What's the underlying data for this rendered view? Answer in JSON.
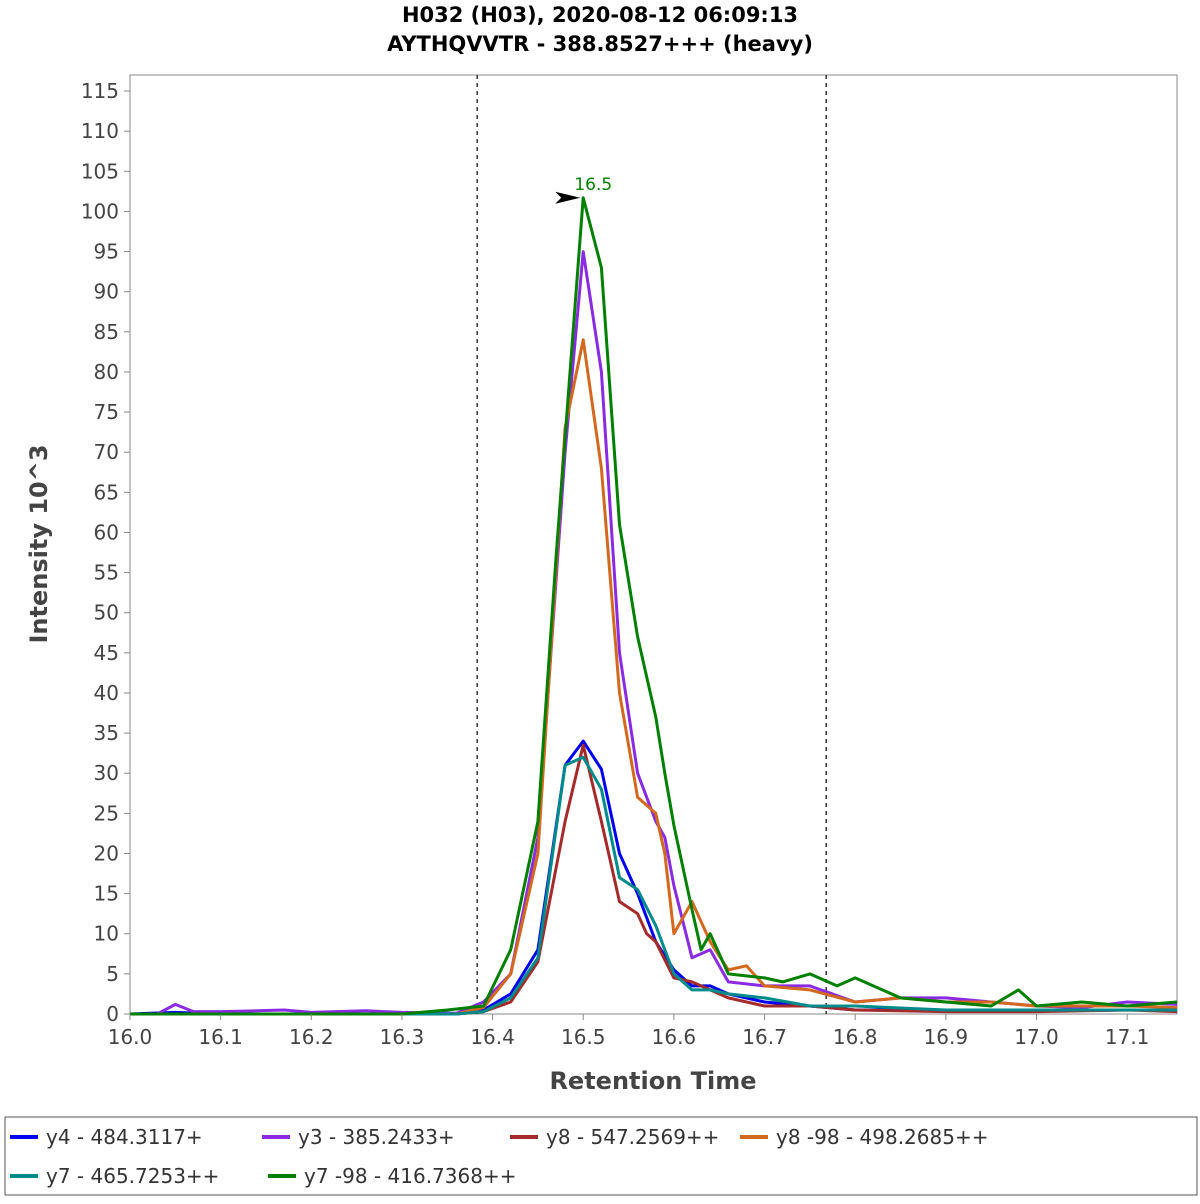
{
  "chart_data": {
    "type": "line",
    "title": "H032 (H03), 2020-08-12 06:09:13",
    "subtitle": "AYTHQVVTR - 388.8527+++ (heavy)",
    "xlabel": "Retention Time",
    "ylabel": "Intensity 10^3",
    "xlim": [
      16.0,
      17.155
    ],
    "ylim": [
      0,
      117
    ],
    "x_ticks": [
      16.0,
      16.1,
      16.2,
      16.3,
      16.4,
      16.5,
      16.6,
      16.7,
      16.8,
      16.9,
      17.0,
      17.1
    ],
    "x_tick_labels": [
      "16.0",
      "16.1",
      "16.2",
      "16.3",
      "16.4",
      "16.5",
      "16.6",
      "16.7",
      "16.8",
      "16.9",
      "17.0",
      "17.1"
    ],
    "y_ticks": [
      0,
      5,
      10,
      15,
      20,
      25,
      30,
      35,
      40,
      45,
      50,
      55,
      60,
      65,
      70,
      75,
      80,
      85,
      90,
      95,
      100,
      105,
      110,
      115
    ],
    "y_tick_labels": [
      "0",
      "5",
      "10",
      "15",
      "20",
      "25",
      "30",
      "35",
      "40",
      "45",
      "50",
      "55",
      "60",
      "65",
      "70",
      "75",
      "80",
      "85",
      "90",
      "95",
      "100",
      "105",
      "110",
      "115"
    ],
    "boundaries": [
      16.383,
      16.768
    ],
    "annotation": {
      "text": "16.5",
      "x": 16.5,
      "y": 101.7,
      "color": "#008000"
    },
    "legend_position": "bottom",
    "series": [
      {
        "name": "y4 - 484.3117+",
        "color": "#0000ee",
        "x": [
          16.0,
          16.05,
          16.1,
          16.2,
          16.3,
          16.36,
          16.39,
          16.42,
          16.45,
          16.48,
          16.5,
          16.52,
          16.54,
          16.56,
          16.58,
          16.6,
          16.62,
          16.64,
          16.66,
          16.7,
          16.75,
          16.8,
          16.9,
          17.0,
          17.1,
          17.155
        ],
        "y": [
          0,
          0.2,
          0,
          0,
          0,
          0,
          0.5,
          2.5,
          8,
          31,
          34,
          30.5,
          20,
          15,
          9,
          5.5,
          3.5,
          3.5,
          2.5,
          1.5,
          1,
          0.5,
          0.5,
          0.4,
          0.5,
          0.5
        ]
      },
      {
        "name": "y3 - 385.2433+",
        "color": "#8a2be2",
        "x": [
          16.0,
          16.03,
          16.05,
          16.07,
          16.1,
          16.14,
          16.17,
          16.2,
          16.26,
          16.3,
          16.36,
          16.39,
          16.42,
          16.45,
          16.48,
          16.5,
          16.52,
          16.54,
          16.56,
          16.58,
          16.59,
          16.6,
          16.62,
          16.64,
          16.66,
          16.7,
          16.75,
          16.8,
          16.85,
          16.9,
          16.95,
          17.0,
          17.05,
          17.1,
          17.155
        ],
        "y": [
          0,
          0,
          1.2,
          0.3,
          0.3,
          0.4,
          0.5,
          0.2,
          0.4,
          0.2,
          0.1,
          1.5,
          5,
          22,
          70,
          95,
          80,
          45,
          30,
          24,
          22,
          16,
          7,
          8,
          4,
          3.5,
          3.5,
          1.5,
          2,
          2,
          1.5,
          1,
          0.8,
          1.5,
          1.2
        ]
      },
      {
        "name": "y8 - 547.2569++",
        "color": "#a52a2a",
        "x": [
          16.0,
          16.1,
          16.2,
          16.3,
          16.36,
          16.39,
          16.42,
          16.45,
          16.48,
          16.5,
          16.52,
          16.54,
          16.56,
          16.57,
          16.58,
          16.6,
          16.62,
          16.64,
          16.66,
          16.7,
          16.75,
          16.8,
          16.9,
          17.0,
          17.1,
          17.155
        ],
        "y": [
          0,
          0,
          0,
          0,
          0,
          0.3,
          1.5,
          6.5,
          24,
          33.5,
          24,
          14,
          12.5,
          10,
          9,
          4.5,
          4,
          3,
          2,
          1,
          1,
          0.5,
          0.3,
          0.3,
          0.5,
          0.3
        ]
      },
      {
        "name": "y8 -98 - 498.2685++",
        "color": "#d2691e",
        "x": [
          16.0,
          16.1,
          16.2,
          16.3,
          16.36,
          16.39,
          16.42,
          16.45,
          16.48,
          16.5,
          16.52,
          16.54,
          16.56,
          16.58,
          16.59,
          16.6,
          16.62,
          16.64,
          16.66,
          16.68,
          16.7,
          16.75,
          16.8,
          16.85,
          16.9,
          16.95,
          17.0,
          17.1,
          17.155
        ],
        "y": [
          0,
          0,
          0,
          0,
          0,
          0.8,
          5,
          20,
          73,
          84,
          68,
          40,
          27,
          25,
          20,
          10,
          14,
          9,
          5.5,
          6,
          3.5,
          3,
          1.5,
          2,
          1.5,
          1.5,
          1,
          1,
          0.8
        ]
      },
      {
        "name": "y7 - 465.7253++",
        "color": "#008b8b",
        "x": [
          16.0,
          16.1,
          16.2,
          16.3,
          16.36,
          16.39,
          16.42,
          16.45,
          16.48,
          16.5,
          16.52,
          16.54,
          16.56,
          16.58,
          16.6,
          16.62,
          16.64,
          16.66,
          16.7,
          16.75,
          16.8,
          16.9,
          17.0,
          17.1,
          17.155
        ],
        "y": [
          0,
          0,
          0,
          0,
          0,
          0.3,
          2,
          7,
          31,
          32,
          28,
          17,
          15.5,
          11,
          5,
          3,
          3,
          2.5,
          2,
          1,
          1,
          0.5,
          0.5,
          0.5,
          0.5
        ]
      },
      {
        "name": "y7 -98 - 416.7368++",
        "color": "#008000",
        "x": [
          16.0,
          16.1,
          16.2,
          16.3,
          16.35,
          16.39,
          16.42,
          16.45,
          16.47,
          16.5,
          16.52,
          16.54,
          16.56,
          16.58,
          16.59,
          16.6,
          16.62,
          16.63,
          16.64,
          16.66,
          16.7,
          16.72,
          16.75,
          16.78,
          16.8,
          16.85,
          16.9,
          16.95,
          16.98,
          17.0,
          17.05,
          17.1,
          17.155
        ],
        "y": [
          0,
          0,
          0,
          0,
          0.5,
          1,
          8,
          24,
          57,
          101.7,
          93,
          61,
          47,
          37,
          30,
          23.5,
          13,
          8,
          10,
          5,
          4.5,
          4,
          5,
          3.5,
          4.5,
          2,
          1.5,
          1,
          3,
          1,
          1.5,
          1,
          1.5
        ]
      }
    ]
  }
}
